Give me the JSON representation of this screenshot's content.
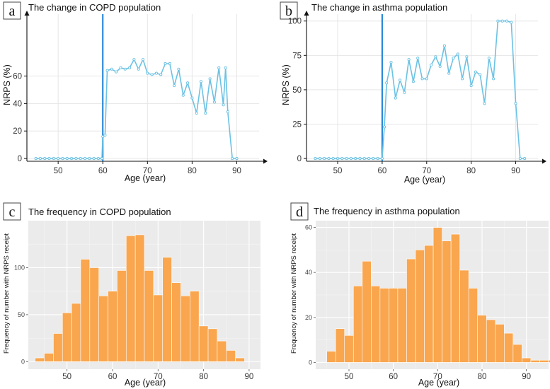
{
  "colors": {
    "line": "#6cc2e4",
    "vline": "#1a7fd6",
    "bar": "#f9a64e",
    "bar_edge": "#ffffff",
    "panel_bg": "#ebebeb"
  },
  "chart_data": [
    {
      "panel": "a",
      "type": "line",
      "title": "The change in COPD population",
      "xlabel": "Age (year)",
      "ylabel": "NRPS (%)",
      "xlim": [
        43,
        95
      ],
      "ylim": [
        -2,
        105
      ],
      "xticks": [
        50,
        60,
        70,
        80,
        90
      ],
      "yticks": [
        0,
        20,
        40,
        60
      ],
      "vline": 60,
      "x": [
        45,
        46,
        47,
        48,
        49,
        50,
        51,
        52,
        53,
        54,
        55,
        56,
        57,
        58,
        59,
        59.8,
        60,
        60.5,
        61,
        62,
        63,
        64,
        65,
        66,
        67,
        68,
        69,
        70,
        71,
        72,
        73,
        74,
        75,
        76,
        77,
        78,
        79,
        80,
        81,
        82,
        83,
        84,
        85,
        86,
        87,
        87.5,
        88,
        89,
        90
      ],
      "y": [
        0,
        0,
        0,
        0,
        0,
        0,
        0,
        0,
        0,
        0,
        0,
        0,
        0,
        0,
        0,
        0,
        16,
        17,
        64,
        65,
        63,
        66,
        65,
        66,
        72,
        65,
        72,
        62,
        61,
        62,
        61,
        69,
        69,
        53,
        65,
        46,
        55,
        44,
        33,
        56,
        33,
        58,
        41,
        66,
        39,
        66,
        34,
        0,
        0
      ]
    },
    {
      "panel": "b",
      "type": "line",
      "title": "The change in asthma population",
      "xlabel": "Age (year)",
      "ylabel": "NRPS (%)",
      "xlim": [
        43,
        95
      ],
      "ylim": [
        -2,
        105
      ],
      "xticks": [
        50,
        60,
        70,
        80,
        90
      ],
      "yticks": [
        0,
        25,
        50,
        75,
        100
      ],
      "vline": 60,
      "x": [
        45,
        46,
        47,
        48,
        49,
        50,
        51,
        52,
        53,
        54,
        55,
        56,
        57,
        58,
        59,
        60,
        60.5,
        61,
        62,
        63,
        64,
        65,
        66,
        67,
        68,
        69,
        70,
        71,
        72,
        73,
        74,
        75,
        76,
        77,
        78,
        79,
        80,
        81,
        82,
        83,
        84,
        85,
        86,
        87,
        88,
        89,
        90,
        91,
        92
      ],
      "y": [
        0,
        0,
        0,
        0,
        0,
        0,
        0,
        0,
        0,
        0,
        0,
        0,
        0,
        0,
        0,
        0,
        23,
        55,
        70,
        44,
        57,
        48,
        72,
        56,
        73,
        58,
        58,
        68,
        74,
        67,
        82,
        62,
        73,
        76,
        58,
        74,
        53,
        63,
        61,
        40,
        73,
        58,
        100,
        100,
        100,
        99,
        40,
        0,
        0
      ]
    },
    {
      "panel": "c",
      "type": "bar",
      "title": "The frequency in COPD population",
      "xlabel": "Age (year)",
      "ylabel": "Frequency of number with NRPS receipt",
      "xlim": [
        41.5,
        92.5
      ],
      "ylim": [
        -8,
        150
      ],
      "xticks": [
        50,
        60,
        70,
        80,
        90
      ],
      "yticks": [
        0,
        50,
        100
      ],
      "bin_start": 43,
      "bin_width": 2,
      "values": [
        4,
        9,
        30,
        52,
        62,
        109,
        100,
        70,
        75,
        97,
        134,
        135,
        97,
        71,
        111,
        84,
        70,
        75,
        38,
        35,
        22,
        12,
        4
      ]
    },
    {
      "panel": "d",
      "type": "bar",
      "title": "The frequency in asthma population",
      "xlabel": "Age (year)",
      "ylabel": "Frequency of number with NRPS receipt",
      "xlim": [
        42.5,
        95
      ],
      "ylim": [
        -3,
        63
      ],
      "xticks": [
        50,
        60,
        70,
        80,
        90
      ],
      "yticks": [
        0,
        20,
        40,
        60
      ],
      "bin_start": 45,
      "bin_width": 2,
      "values": [
        5,
        15,
        12,
        34,
        45,
        34,
        33,
        33,
        33,
        46,
        50,
        52,
        60,
        54,
        57,
        41,
        33,
        21,
        19,
        17,
        13,
        8,
        2,
        1,
        1,
        1
      ]
    }
  ]
}
